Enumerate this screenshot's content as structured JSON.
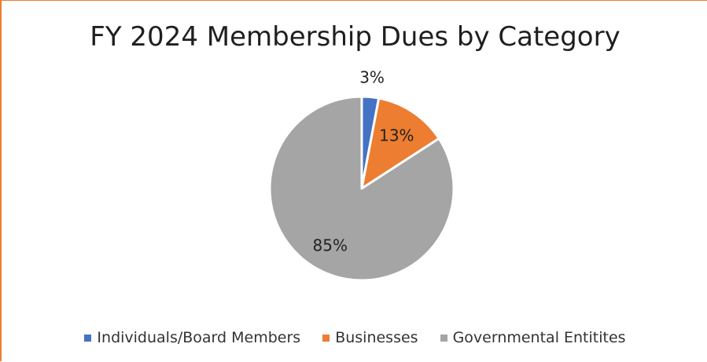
{
  "chart_data": {
    "type": "pie",
    "title": "FY 2024 Membership Dues by Category",
    "categories": [
      "Individuals/Board Members",
      "Businesses",
      "Governmental Entitites"
    ],
    "values": [
      3,
      13,
      85
    ],
    "data_labels": [
      "3%",
      "13%",
      "85%"
    ],
    "colors": [
      "#4472C4",
      "#ED7D31",
      "#A5A5A5"
    ],
    "legend_position": "bottom"
  }
}
